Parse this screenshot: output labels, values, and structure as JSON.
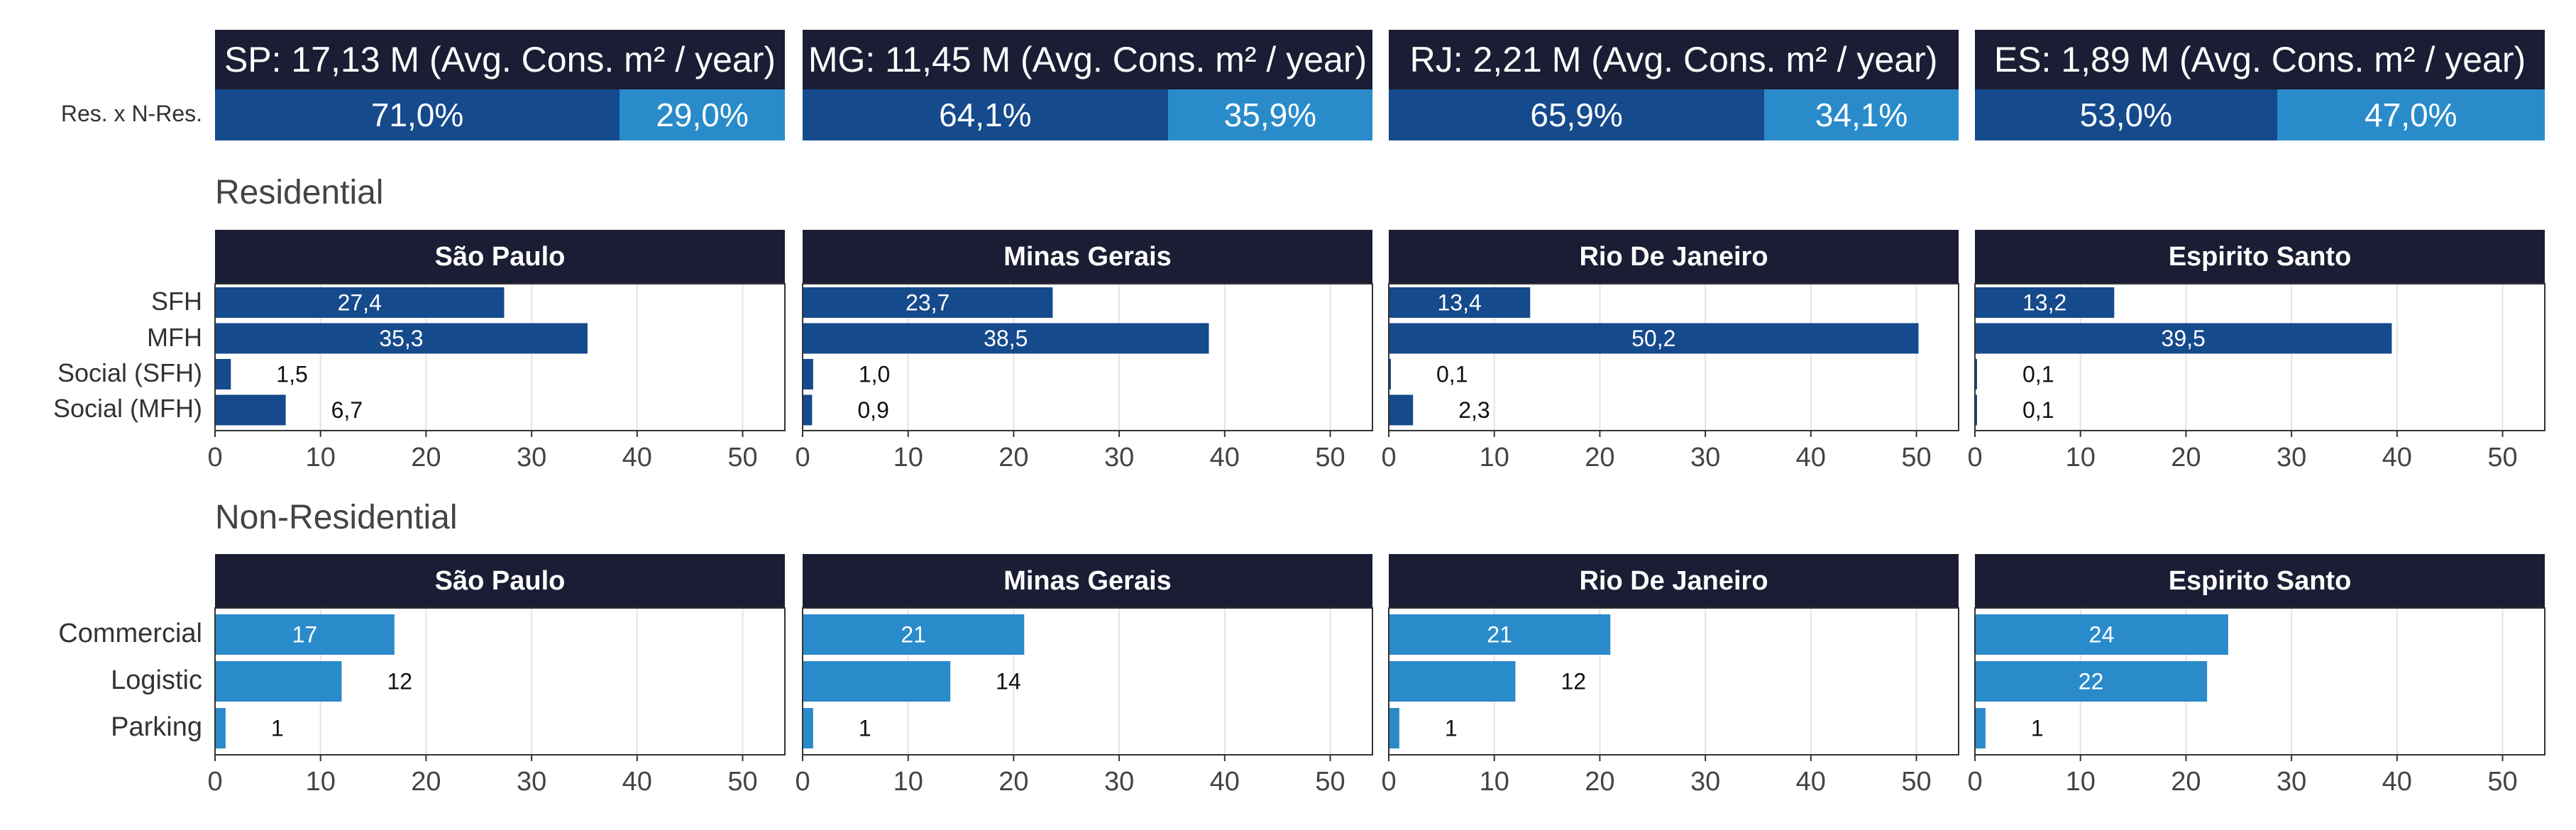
{
  "top_row": {
    "row_label": "Res. x N-Res.",
    "states": [
      {
        "title": "SP: 17,13 M (Avg. Cons. m² / year)",
        "res_pct": 71.0,
        "res_label": "71,0%",
        "nres_label": "29,0%"
      },
      {
        "title": "MG: 11,45 M (Avg. Cons. m² / year)",
        "res_pct": 64.1,
        "res_label": "64,1%",
        "nres_label": "35,9%"
      },
      {
        "title": "RJ:  2,21 M (Avg. Cons. m² / year)",
        "res_pct": 65.9,
        "res_label": "65,9%",
        "nres_label": "34,1%"
      },
      {
        "title": "ES:  1,89 M (Avg. Cons. m² / year)",
        "res_pct": 53.0,
        "res_label": "53,0%",
        "nres_label": "47,0%"
      }
    ]
  },
  "colors": {
    "dark_blue": "#154a8c",
    "light_blue": "#2a8bca",
    "header": "#1a1d33",
    "grid": "#e3e3e3",
    "axis": "#333333"
  },
  "sections": {
    "residential": "Residential",
    "non_residential": "Non-Residential"
  },
  "chart_data": [
    {
      "type": "bar",
      "orientation": "horizontal",
      "section": "Residential",
      "categories": [
        "SFH",
        "MFH",
        "Social (SFH)",
        "Social (MFH)"
      ],
      "xlim": [
        0,
        54
      ],
      "xticks": [
        0,
        10,
        20,
        30,
        40,
        50
      ],
      "panels": [
        {
          "title": "São Paulo",
          "values": [
            27.4,
            35.3,
            1.5,
            6.7
          ],
          "labels": [
            "27,4",
            "35,3",
            "1,5",
            "6,7"
          ]
        },
        {
          "title": "Minas Gerais",
          "values": [
            23.7,
            38.5,
            1.0,
            0.9
          ],
          "labels": [
            "23,7",
            "38,5",
            "1,0",
            "0,9"
          ]
        },
        {
          "title": "Rio De Janeiro",
          "values": [
            13.4,
            50.2,
            0.1,
            2.3
          ],
          "labels": [
            "13,4",
            "50,2",
            "0,1",
            "2,3"
          ]
        },
        {
          "title": "Espirito Santo",
          "values": [
            13.2,
            39.5,
            0.1,
            0.1
          ],
          "labels": [
            "13,2",
            "39,5",
            "0,1",
            "0,1"
          ]
        }
      ]
    },
    {
      "type": "bar",
      "orientation": "horizontal",
      "section": "Non-Residential",
      "categories": [
        "Commercial",
        "Logistic",
        "Parking"
      ],
      "xlim": [
        0,
        54
      ],
      "xticks": [
        0,
        10,
        20,
        30,
        40,
        50
      ],
      "panels": [
        {
          "title": "São Paulo",
          "values": [
            17,
            12,
            1
          ],
          "labels": [
            "17",
            "12",
            "1"
          ]
        },
        {
          "title": "Minas Gerais",
          "values": [
            21,
            14,
            1
          ],
          "labels": [
            "21",
            "14",
            "1"
          ]
        },
        {
          "title": "Rio De Janeiro",
          "values": [
            21,
            12,
            1
          ],
          "labels": [
            "21",
            "12",
            "1"
          ]
        },
        {
          "title": "Espirito Santo",
          "values": [
            24,
            22,
            1
          ],
          "labels": [
            "24",
            "22",
            "1"
          ]
        }
      ]
    }
  ]
}
